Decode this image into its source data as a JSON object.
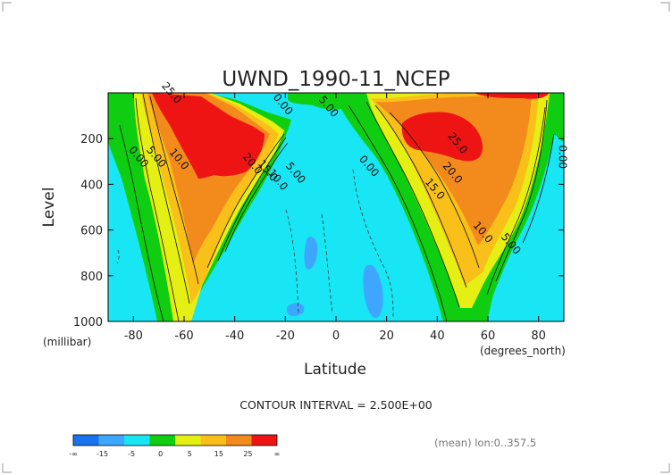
{
  "chart_data": {
    "type": "contour",
    "title": "UWND_1990-11_NCEP",
    "xlabel": "Latitude",
    "ylabel": "Level",
    "x_units": "(degrees_north)",
    "y_units": "(millibar)",
    "xlim": [
      -90,
      90
    ],
    "ylim": [
      1000,
      0
    ],
    "x_ticks": [
      -80,
      -60,
      -40,
      -20,
      0,
      20,
      40,
      60,
      80
    ],
    "y_ticks": [
      200,
      400,
      600,
      800,
      1000
    ],
    "y_scale": "linear, inverted (pressure)",
    "contour_interval_text": "CONTOUR INTERVAL = 2.500E+00",
    "footer_note": "(mean) lon:0..357.5",
    "contour_labels": [
      {
        "text": "25.0",
        "lat": -66,
        "level": 10
      },
      {
        "text": "0.00",
        "lat": -22,
        "level": 60
      },
      {
        "text": "5.00",
        "lat": -4,
        "level": 70
      },
      {
        "text": "10.0",
        "lat": -63,
        "level": 300
      },
      {
        "text": "5.00",
        "lat": -72,
        "level": 290
      },
      {
        "text": "0.00",
        "lat": -79,
        "level": 290
      },
      {
        "text": "20.0",
        "lat": -34,
        "level": 320
      },
      {
        "text": "15.0",
        "lat": -28,
        "level": 350
      },
      {
        "text": "10.0",
        "lat": -24,
        "level": 390
      },
      {
        "text": "5.00",
        "lat": -17,
        "level": 360
      },
      {
        "text": "0.00",
        "lat": 12,
        "level": 330
      },
      {
        "text": "25.0",
        "lat": 47,
        "level": 230
      },
      {
        "text": "20.0",
        "lat": 45,
        "level": 360
      },
      {
        "text": "15.0",
        "lat": 38,
        "level": 430
      },
      {
        "text": "10.0",
        "lat": 57,
        "level": 620
      },
      {
        "text": "5.00",
        "lat": 68,
        "level": 670
      },
      {
        "text": "0.00",
        "lat": 88,
        "level": 280
      }
    ],
    "grid": false
  },
  "legend": {
    "boundary_labels": [
      "-∞",
      "-15",
      "-5",
      "0",
      "5",
      "15",
      "25",
      "∞"
    ],
    "colors": [
      "#1873ee",
      "#3ea6ff",
      "#19e6f4",
      "#0fce12",
      "#e6ef14",
      "#f9c01a",
      "#f38a1c",
      "#ee1414"
    ]
  },
  "colors": {
    "deep_blue": "#1873ee",
    "blue": "#3ea6ff",
    "cyan": "#19e6f4",
    "green": "#0fce12",
    "yellow": "#e6ef14",
    "gold": "#f9c01a",
    "orange": "#f38a1c",
    "red": "#ee1414"
  }
}
